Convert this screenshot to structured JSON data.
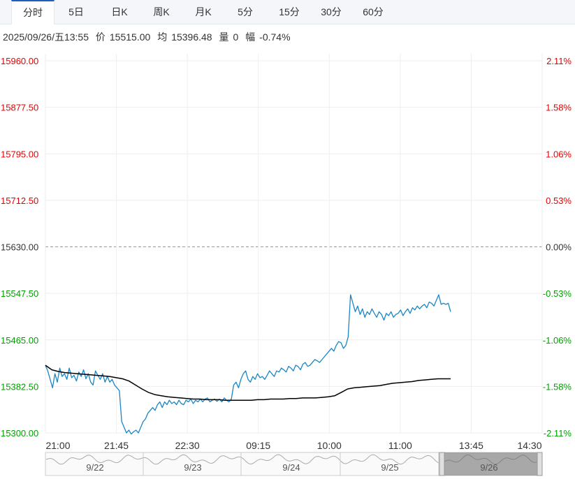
{
  "tabs": [
    {
      "label": "分时",
      "active": true
    },
    {
      "label": "5日",
      "active": false
    },
    {
      "label": "日K",
      "active": false
    },
    {
      "label": "周K",
      "active": false
    },
    {
      "label": "月K",
      "active": false
    },
    {
      "label": "5分",
      "active": false
    },
    {
      "label": "15分",
      "active": false
    },
    {
      "label": "30分",
      "active": false
    },
    {
      "label": "60分",
      "active": false
    }
  ],
  "info": {
    "datetime": "2025/09/26/五13:55",
    "price_label": "价",
    "price": "15515.00",
    "avg_label": "均",
    "avg": "15396.48",
    "volume_label": "量",
    "volume": "0",
    "change_label": "幅",
    "change": "-0.74%"
  },
  "colors": {
    "up": "#e60000",
    "down": "#00a000",
    "flat": "#333333",
    "price_line": "#1a86c4",
    "avg_line": "#000000",
    "grid": "#eeeeee"
  },
  "chart_data": {
    "type": "line",
    "reference_price": 15630.0,
    "ylim": [
      15300.0,
      15960.0
    ],
    "y_ticks": [
      "15960.00",
      "15877.50",
      "15795.00",
      "15712.50",
      "15630.00",
      "15547.50",
      "15465.00",
      "15382.50",
      "15300.00"
    ],
    "pct_ticks": [
      "2.11%",
      "1.58%",
      "1.06%",
      "0.53%",
      "0.00%",
      "-0.53%",
      "-1.06%",
      "-1.58%",
      "-2.11%"
    ],
    "x_ticks": [
      "21:00",
      "21:45",
      "22:30",
      "09:15",
      "10:00",
      "11:00",
      "13:45",
      "14:30"
    ],
    "series": [
      {
        "role": "price",
        "values": [
          15420,
          15410,
          15395,
          15380,
          15405,
          15390,
          15415,
          15400,
          15405,
          15395,
          15415,
          15398,
          15402,
          15392,
          15408,
          15400,
          15412,
          15396,
          15405,
          15390,
          15385,
          15410,
          15402,
          15395,
          15405,
          15390,
          15400,
          15390,
          15395,
          15385,
          15380,
          15375,
          15320,
          15310,
          15300,
          15305,
          15298,
          15302,
          15305,
          15300,
          15310,
          15320,
          15325,
          15335,
          15340,
          15345,
          15340,
          15350,
          15355,
          15345,
          15355,
          15350,
          15358,
          15352,
          15355,
          15350,
          15358,
          15352,
          15350,
          15358,
          15355,
          15360,
          15352,
          15358,
          15355,
          15360,
          15355,
          15360,
          15362,
          15355,
          15358,
          15360,
          15356,
          15360,
          15355,
          15362,
          15358,
          15355,
          15360,
          15385,
          15390,
          15380,
          15395,
          15405,
          15410,
          15395,
          15390,
          15400,
          15395,
          15405,
          15398,
          15400,
          15395,
          15402,
          15410,
          15405,
          15400,
          15410,
          15408,
          15415,
          15412,
          15408,
          15418,
          15415,
          15410,
          15420,
          15418,
          15412,
          15422,
          15425,
          15418,
          15420,
          15425,
          15430,
          15428,
          15425,
          15430,
          15435,
          15440,
          15445,
          15450,
          15445,
          15455,
          15462,
          15460,
          15450,
          15455,
          15470,
          15545,
          15530,
          15515,
          15525,
          15510,
          15520,
          15505,
          15515,
          15510,
          15520,
          15512,
          15505,
          15515,
          15510,
          15500,
          15512,
          15508,
          15515,
          15505,
          15510,
          15512,
          15518,
          15508,
          15515,
          15520,
          15512,
          15522,
          15518,
          15525,
          15520,
          15525,
          15528,
          15522,
          15532,
          15530,
          15525,
          15535,
          15545,
          15528,
          15530,
          15528,
          15530,
          15515
        ]
      },
      {
        "role": "average",
        "values": [
          15420,
          15412,
          15409,
          15407,
          15406,
          15405,
          15404,
          15403,
          15402,
          15401,
          15400,
          15398,
          15396,
          15392,
          15385,
          15378,
          15372,
          15368,
          15366,
          15364,
          15363,
          15362,
          15361,
          15360,
          15360,
          15359,
          15359,
          15359,
          15358,
          15358,
          15358,
          15358,
          15358,
          15359,
          15359,
          15360,
          15360,
          15360,
          15361,
          15361,
          15362,
          15362,
          15362,
          15363,
          15364,
          15366,
          15372,
          15378,
          15380,
          15381,
          15382,
          15383,
          15384,
          15386,
          15388,
          15389,
          15390,
          15391,
          15393,
          15394,
          15395,
          15396,
          15396,
          15396
        ]
      }
    ]
  },
  "navigator": {
    "labels": [
      "9/22",
      "9/23",
      "9/24",
      "9/25",
      "9/26"
    ]
  }
}
